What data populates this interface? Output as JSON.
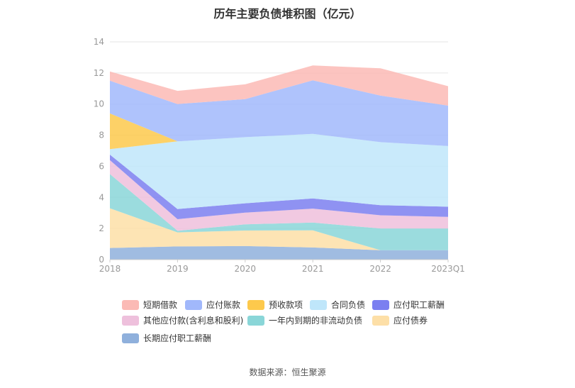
{
  "chart_data": {
    "type": "area",
    "stacked": true,
    "title": "历年主要负债堆积图（亿元）",
    "xlabel": "",
    "ylabel": "",
    "ylim": [
      0,
      14
    ],
    "yticks": [
      0,
      2,
      4,
      6,
      8,
      10,
      12,
      14
    ],
    "categories": [
      "2018",
      "2019",
      "2020",
      "2021",
      "2022",
      "2023Q1"
    ],
    "grid": true,
    "legend_position": "bottom",
    "series": [
      {
        "name": "长期应付职工薪酬",
        "color": "#8fb0dc",
        "values": [
          0.75,
          0.85,
          0.87,
          0.78,
          0.6,
          0.6
        ]
      },
      {
        "name": "应付债券",
        "color": "#fddfa7",
        "values": [
          2.55,
          0.9,
          1.0,
          1.1,
          0.0,
          0.0
        ]
      },
      {
        "name": "一年内到期的非流动负债",
        "color": "#8ad6d8",
        "values": [
          2.2,
          0.1,
          0.4,
          0.5,
          1.4,
          1.4
        ]
      },
      {
        "name": "其他应付款(含利息和股利)",
        "color": "#eec0dc",
        "values": [
          0.9,
          0.75,
          0.75,
          0.9,
          0.85,
          0.75
        ]
      },
      {
        "name": "应付职工薪酬",
        "color": "#7b7ff0",
        "values": [
          0.35,
          0.65,
          0.6,
          0.65,
          0.65,
          0.65
        ]
      },
      {
        "name": "合同负债",
        "color": "#bfe6fa",
        "values": [
          0.35,
          4.35,
          4.25,
          4.15,
          4.05,
          3.9
        ]
      },
      {
        "name": "预收款项",
        "color": "#fdc94c",
        "values": [
          2.3,
          0.0,
          0.0,
          0.0,
          0.0,
          0.0
        ]
      },
      {
        "name": "应付账款",
        "color": "#a1b8fb",
        "values": [
          2.1,
          2.4,
          2.45,
          3.45,
          3.0,
          2.6
        ]
      },
      {
        "name": "短期借款",
        "color": "#fbbab5",
        "values": [
          0.6,
          0.85,
          0.95,
          0.95,
          1.75,
          1.25
        ]
      }
    ],
    "legend_order": [
      "短期借款",
      "应付账款",
      "预收款项",
      "合同负债",
      "应付职工薪酬",
      "其他应付款(含利息和股利)",
      "一年内到期的非流动负债",
      "应付债券",
      "长期应付职工薪酬"
    ]
  },
  "source": "数据来源：恒生聚源"
}
